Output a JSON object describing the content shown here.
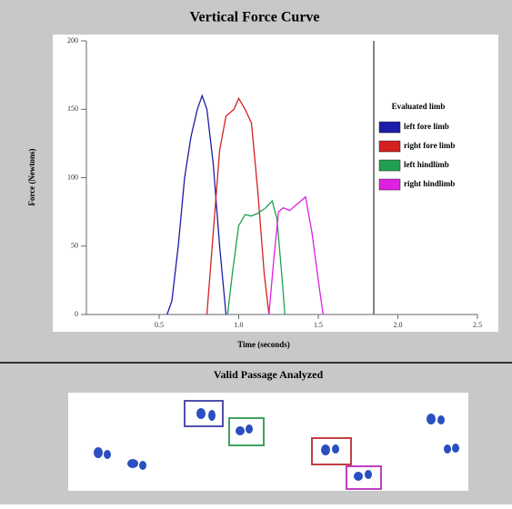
{
  "chart_data": {
    "type": "line",
    "title": "Vertical Force Curve",
    "x_label": "Time (seconds)",
    "y_label": "Force (Newtons)",
    "xlim": [
      0,
      2.5
    ],
    "xticks": [
      0.5,
      {
        "value": 1,
        "label": "1.0"
      },
      1.5,
      {
        "value": 2,
        "label": "2.0"
      },
      2.5
    ],
    "ylim": [
      0,
      200
    ],
    "yticks": [
      0,
      50,
      100,
      150,
      200
    ],
    "legend_title": "Evaluated limb",
    "legend": "right",
    "series": [
      {
        "name": "left fore limb",
        "color": "#1c1ca8",
        "x": [
          0.55,
          0.58,
          0.62,
          0.66,
          0.7,
          0.74,
          0.77,
          0.8,
          0.84,
          0.88,
          0.92
        ],
        "values": [
          0,
          10,
          50,
          100,
          130,
          150,
          160,
          150,
          110,
          50,
          0
        ]
      },
      {
        "name": "right fore limb",
        "color": "#d42020",
        "x": [
          0.8,
          0.84,
          0.88,
          0.92,
          0.97,
          1.0,
          1.04,
          1.08,
          1.12,
          1.16,
          1.19
        ],
        "values": [
          0,
          60,
          120,
          145,
          150,
          158,
          150,
          140,
          90,
          30,
          0
        ]
      },
      {
        "name": "left hindlimb",
        "color": "#20a050",
        "x": [
          0.93,
          0.96,
          1.0,
          1.04,
          1.08,
          1.12,
          1.17,
          1.21,
          1.24,
          1.27,
          1.29
        ],
        "values": [
          0,
          30,
          65,
          73,
          72,
          74,
          78,
          83,
          70,
          30,
          0
        ]
      },
      {
        "name": "right hindlimb",
        "color": "#e020e0",
        "x": [
          1.19,
          1.22,
          1.25,
          1.28,
          1.32,
          1.38,
          1.42,
          1.46,
          1.5,
          1.53
        ],
        "values": [
          0,
          40,
          75,
          78,
          76,
          82,
          86,
          60,
          25,
          0
        ]
      }
    ]
  },
  "passage": {
    "title": "Valid Passage Analyzed"
  }
}
